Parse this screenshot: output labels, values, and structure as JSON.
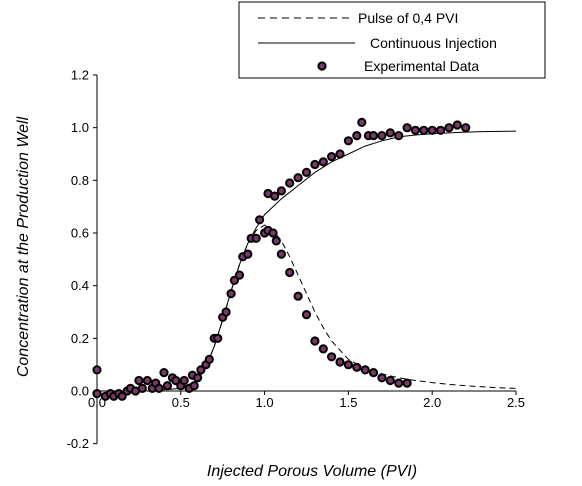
{
  "chart_data": {
    "type": "scatter",
    "title": "",
    "xlabel": "Injected Porous Volume (PVI)",
    "ylabel": "Concentration at the Production Well",
    "xlim": [
      0,
      2.5
    ],
    "ylim": [
      -0.2,
      1.2
    ],
    "x_ticks": [
      "0.0",
      "0.5",
      "1.0",
      "1.5",
      "2.0",
      "2.5"
    ],
    "y_ticks": [
      "-0.2",
      "0.0",
      "0.2",
      "0.4",
      "0.6",
      "0.8",
      "1.0",
      "1.2"
    ],
    "grid": false,
    "legend_position": "top-right",
    "series": [
      {
        "name": "Pulse of 0,4 PVI",
        "style": "dashed-line",
        "color": "#000000",
        "x": [
          0.0,
          0.3,
          0.5,
          0.6,
          0.65,
          0.7,
          0.75,
          0.8,
          0.85,
          0.9,
          0.95,
          1.0,
          1.05,
          1.1,
          1.15,
          1.2,
          1.25,
          1.3,
          1.35,
          1.4,
          1.5,
          1.6,
          1.7,
          1.8,
          1.9,
          2.0,
          2.1,
          2.2,
          2.3,
          2.4,
          2.5
        ],
        "y": [
          0.0,
          0.0,
          0.01,
          0.04,
          0.09,
          0.17,
          0.27,
          0.38,
          0.48,
          0.56,
          0.61,
          0.63,
          0.61,
          0.57,
          0.51,
          0.44,
          0.37,
          0.3,
          0.24,
          0.19,
          0.12,
          0.085,
          0.065,
          0.05,
          0.04,
          0.032,
          0.025,
          0.02,
          0.016,
          0.012,
          0.01
        ]
      },
      {
        "name": "Continuous Injection",
        "style": "solid-line",
        "color": "#000000",
        "x": [
          0.0,
          0.3,
          0.5,
          0.6,
          0.65,
          0.7,
          0.75,
          0.8,
          0.85,
          0.9,
          0.95,
          1.0,
          1.05,
          1.1,
          1.2,
          1.3,
          1.4,
          1.5,
          1.6,
          1.7,
          1.8,
          1.9,
          2.0,
          2.1,
          2.2,
          2.3,
          2.4,
          2.5
        ],
        "y": [
          0.0,
          0.0,
          0.01,
          0.04,
          0.09,
          0.17,
          0.27,
          0.38,
          0.48,
          0.56,
          0.62,
          0.67,
          0.7,
          0.73,
          0.78,
          0.83,
          0.87,
          0.9,
          0.93,
          0.95,
          0.965,
          0.972,
          0.977,
          0.98,
          0.983,
          0.985,
          0.986,
          0.987
        ]
      },
      {
        "name": "Experimental Data",
        "style": "markers",
        "marker_edge": "#000000",
        "marker_fill": "#7a3a66",
        "x": [
          0.0,
          0.0,
          0.05,
          0.08,
          0.1,
          0.13,
          0.15,
          0.18,
          0.2,
          0.23,
          0.25,
          0.27,
          0.3,
          0.33,
          0.35,
          0.37,
          0.4,
          0.42,
          0.45,
          0.47,
          0.5,
          0.52,
          0.55,
          0.57,
          0.58,
          0.6,
          0.62,
          0.65,
          0.67,
          0.7,
          0.72,
          0.75,
          0.77,
          0.8,
          0.82,
          0.85,
          0.87,
          0.9,
          0.92,
          0.95,
          0.97,
          1.0,
          1.02,
          1.05,
          1.07,
          1.1,
          1.15,
          1.2,
          1.25,
          1.3,
          1.35,
          1.4,
          1.45,
          1.5,
          1.55,
          1.6,
          1.65,
          1.7,
          1.75,
          1.8,
          1.85,
          1.02,
          1.06,
          1.1,
          1.15,
          1.2,
          1.25,
          1.3,
          1.35,
          1.4,
          1.45,
          1.5,
          1.55,
          1.58,
          1.62,
          1.65,
          1.7,
          1.75,
          1.8,
          1.85,
          1.9,
          1.95,
          2.0,
          2.05,
          2.1,
          2.15,
          2.2
        ],
        "y": [
          0.08,
          -0.01,
          -0.02,
          -0.01,
          -0.02,
          -0.01,
          -0.02,
          0.0,
          0.01,
          0.0,
          0.04,
          0.01,
          0.04,
          0.01,
          0.03,
          0.01,
          0.07,
          0.02,
          0.05,
          0.04,
          0.02,
          0.04,
          0.01,
          0.06,
          0.02,
          0.05,
          0.08,
          0.1,
          0.12,
          0.2,
          0.2,
          0.28,
          0.3,
          0.37,
          0.42,
          0.44,
          0.51,
          0.52,
          0.58,
          0.58,
          0.65,
          0.6,
          0.61,
          0.6,
          0.57,
          0.52,
          0.45,
          0.36,
          0.29,
          0.19,
          0.16,
          0.13,
          0.11,
          0.1,
          0.09,
          0.08,
          0.07,
          0.05,
          0.04,
          0.03,
          0.03,
          0.75,
          0.74,
          0.76,
          0.79,
          0.81,
          0.83,
          0.86,
          0.87,
          0.89,
          0.9,
          0.95,
          0.97,
          1.02,
          0.97,
          0.97,
          0.97,
          0.98,
          0.97,
          1.0,
          0.99,
          0.99,
          0.99,
          0.99,
          1.0,
          1.01,
          1.0
        ]
      }
    ]
  }
}
